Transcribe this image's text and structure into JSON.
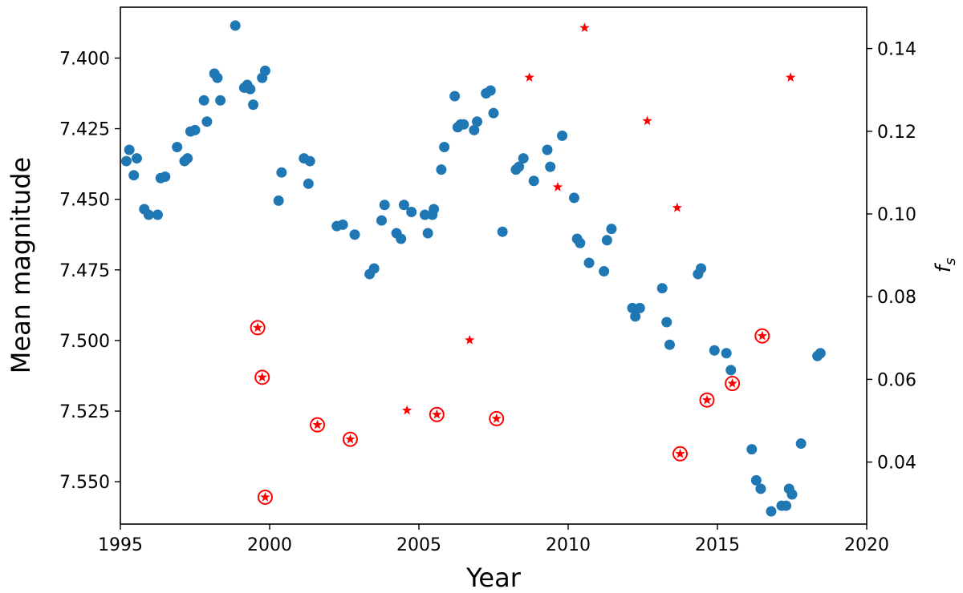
{
  "chart_data": {
    "type": "scatter",
    "title": "",
    "xlabel": "Year",
    "ylabel_left": "Mean magnitude",
    "ylabel_right": {
      "symbol": "f",
      "subscript": "s"
    },
    "xlim": [
      1995,
      2020
    ],
    "ylim_left": [
      7.565,
      7.382
    ],
    "ylim_left_inverted": true,
    "ylim_right": [
      0.025,
      0.15
    ],
    "grid": false,
    "x_ticks": [
      "1995",
      "2000",
      "2005",
      "2010",
      "2015",
      "2020"
    ],
    "y_left_ticks": [
      "7.400",
      "7.425",
      "7.450",
      "7.475",
      "7.500",
      "7.525",
      "7.550"
    ],
    "y_right_ticks": [
      "0.04",
      "0.06",
      "0.08",
      "0.10",
      "0.12",
      "0.14"
    ],
    "colors": {
      "magnitude": "#1f77b4",
      "fs": "#ff0000"
    },
    "series": [
      {
        "axis": "left",
        "marker": "circle",
        "color": "#1f77b4",
        "points": [
          [
            1995.2,
            7.4365
          ],
          [
            1995.3,
            7.4325
          ],
          [
            1995.45,
            7.4415
          ],
          [
            1995.55,
            7.4355
          ],
          [
            1995.8,
            7.4535
          ],
          [
            1995.95,
            7.4555
          ],
          [
            1996.25,
            7.4555
          ],
          [
            1996.35,
            7.4425
          ],
          [
            1996.5,
            7.442
          ],
          [
            1996.9,
            7.4315
          ],
          [
            1997.15,
            7.4365
          ],
          [
            1997.25,
            7.4355
          ],
          [
            1997.35,
            7.426
          ],
          [
            1997.5,
            7.4255
          ],
          [
            1997.8,
            7.415
          ],
          [
            1997.9,
            7.4225
          ],
          [
            1998.15,
            7.4055
          ],
          [
            1998.25,
            7.407
          ],
          [
            1998.35,
            7.415
          ],
          [
            1998.85,
            7.3885
          ],
          [
            1999.15,
            7.4105
          ],
          [
            1999.25,
            7.4095
          ],
          [
            1999.35,
            7.411
          ],
          [
            1999.45,
            7.4165
          ],
          [
            1999.75,
            7.407
          ],
          [
            1999.85,
            7.4045
          ],
          [
            2000.3,
            7.4505
          ],
          [
            2000.4,
            7.4405
          ],
          [
            2001.15,
            7.4355
          ],
          [
            2001.3,
            7.4445
          ],
          [
            2001.35,
            7.4365
          ],
          [
            2002.25,
            7.4595
          ],
          [
            2002.45,
            7.459
          ],
          [
            2002.85,
            7.4625
          ],
          [
            2003.35,
            7.4765
          ],
          [
            2003.5,
            7.4745
          ],
          [
            2003.75,
            7.4575
          ],
          [
            2003.85,
            7.452
          ],
          [
            2004.25,
            7.462
          ],
          [
            2004.4,
            7.464
          ],
          [
            2004.5,
            7.452
          ],
          [
            2004.75,
            7.4545
          ],
          [
            2005.2,
            7.4555
          ],
          [
            2005.3,
            7.462
          ],
          [
            2005.45,
            7.4555
          ],
          [
            2005.5,
            7.4535
          ],
          [
            2005.75,
            7.4395
          ],
          [
            2005.85,
            7.4315
          ],
          [
            2006.2,
            7.4135
          ],
          [
            2006.3,
            7.4245
          ],
          [
            2006.4,
            7.4235
          ],
          [
            2006.5,
            7.4235
          ],
          [
            2006.85,
            7.4255
          ],
          [
            2006.95,
            7.4225
          ],
          [
            2007.25,
            7.4125
          ],
          [
            2007.4,
            7.4115
          ],
          [
            2007.5,
            7.4195
          ],
          [
            2007.8,
            7.4615
          ],
          [
            2008.25,
            7.4395
          ],
          [
            2008.35,
            7.4385
          ],
          [
            2008.5,
            7.4355
          ],
          [
            2008.85,
            7.4435
          ],
          [
            2009.3,
            7.4325
          ],
          [
            2009.4,
            7.4385
          ],
          [
            2009.8,
            7.4275
          ],
          [
            2010.2,
            7.4495
          ],
          [
            2010.3,
            7.464
          ],
          [
            2010.4,
            7.4655
          ],
          [
            2010.7,
            7.4725
          ],
          [
            2011.2,
            7.4755
          ],
          [
            2011.3,
            7.4645
          ],
          [
            2011.45,
            7.4605
          ],
          [
            2012.15,
            7.4885
          ],
          [
            2012.25,
            7.4915
          ],
          [
            2012.4,
            7.4885
          ],
          [
            2013.15,
            7.4815
          ],
          [
            2013.3,
            7.4935
          ],
          [
            2013.4,
            7.5015
          ],
          [
            2014.35,
            7.4765
          ],
          [
            2014.45,
            7.4745
          ],
          [
            2014.9,
            7.5035
          ],
          [
            2015.3,
            7.5045
          ],
          [
            2015.45,
            7.5105
          ],
          [
            2016.15,
            7.5385
          ],
          [
            2016.3,
            7.5495
          ],
          [
            2016.45,
            7.5525
          ],
          [
            2016.8,
            7.5605
          ],
          [
            2017.15,
            7.5585
          ],
          [
            2017.3,
            7.5585
          ],
          [
            2017.4,
            7.5525
          ],
          [
            2017.5,
            7.5545
          ],
          [
            2017.8,
            7.5365
          ],
          [
            2018.35,
            7.5055
          ],
          [
            2018.45,
            7.5045
          ]
        ]
      },
      {
        "axis": "right",
        "marker": "star",
        "color": "#ff0000",
        "points": [
          [
            1999.6,
            0.0725,
            true
          ],
          [
            1999.75,
            0.0605,
            true
          ],
          [
            1999.85,
            0.0315,
            true
          ],
          [
            2001.6,
            0.049,
            true
          ],
          [
            2002.7,
            0.0455,
            true
          ],
          [
            2004.6,
            0.0525,
            false
          ],
          [
            2005.6,
            0.0515,
            true
          ],
          [
            2006.7,
            0.0695,
            false
          ],
          [
            2007.6,
            0.0505,
            true
          ],
          [
            2008.7,
            0.133,
            false
          ],
          [
            2009.65,
            0.1065,
            false
          ],
          [
            2010.55,
            0.145,
            false
          ],
          [
            2012.65,
            0.1225,
            false
          ],
          [
            2013.65,
            0.1015,
            false
          ],
          [
            2013.75,
            0.042,
            true
          ],
          [
            2014.65,
            0.055,
            true
          ],
          [
            2015.5,
            0.059,
            true
          ],
          [
            2016.5,
            0.0705,
            true
          ],
          [
            2017.45,
            0.133,
            false
          ]
        ]
      }
    ]
  }
}
